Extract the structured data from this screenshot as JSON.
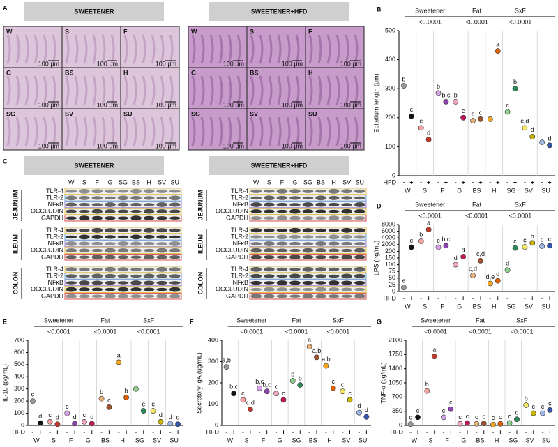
{
  "panel_A": {
    "label": "A",
    "titles": [
      "SWEETENER",
      "SWEETENER+HFD"
    ],
    "image_labels": [
      "W",
      "S",
      "F",
      "G",
      "BS",
      "H",
      "SG",
      "SV",
      "SU"
    ],
    "scale_bar": "100 μm"
  },
  "panel_C": {
    "label": "C",
    "titles": [
      "SWEETENER",
      "SWEETENER+HFD"
    ],
    "lanes": [
      "W",
      "S",
      "F",
      "G",
      "SG",
      "BS",
      "H",
      "SV",
      "SU"
    ],
    "tissues": [
      "JEJUNUM",
      "ILEUM",
      "COLON"
    ],
    "proteins": [
      "TLR-4",
      "TLR-2",
      "NFκB",
      "OCCLUDIN",
      "GAPDH"
    ]
  },
  "chart_data": [
    {
      "type": "dot",
      "panel": "B",
      "ylabel": "Epitelium length (μm)",
      "factors": [
        "Sweetener",
        "Fat",
        "SxF"
      ],
      "pvalues": [
        "<0.0001",
        "<0.0001",
        "<0.0001"
      ],
      "hfd_label": "HFD",
      "hfd_levels": [
        "-",
        "+"
      ],
      "categories": [
        "W",
        "S",
        "F",
        "G",
        "BS",
        "H",
        "SG",
        "SV",
        "SU"
      ],
      "ylim": [
        0,
        500
      ],
      "yticks": [
        0,
        100,
        200,
        300,
        400,
        500
      ],
      "series": [
        {
          "values": [
            310,
            165,
            285,
            255,
            190,
            195,
            220,
            165,
            115
          ],
          "letters": [
            "b",
            "c",
            "b",
            "b",
            "c",
            null,
            "c",
            "c,d",
            null
          ],
          "colors": [
            "#9a9a9a",
            "#f4a3a3",
            "#d6a3e8",
            "#f2a6c6",
            "#e8b07a",
            "#f5a623",
            "#8fd18f",
            "#f5e663",
            "#9fb8e8"
          ]
        },
        {
          "values": [
            205,
            125,
            255,
            200,
            195,
            430,
            300,
            135,
            105
          ],
          "letters": [
            "c",
            "d",
            "b,c",
            "c",
            "c",
            "a",
            "b",
            "d",
            "d"
          ],
          "colors": [
            "#111111",
            "#c0392b",
            "#8e44ad",
            "#c2185b",
            "#a0522d",
            "#e06000",
            "#2e8b57",
            "#c8b400",
            "#3355aa"
          ]
        }
      ]
    },
    {
      "type": "dot",
      "panel": "D",
      "ylabel": "LPS (ng/mL)",
      "factors": [
        "Sweetener",
        "Fat",
        "SxF"
      ],
      "pvalues": [
        "<0.0001",
        "<0.0001",
        "<0.0001"
      ],
      "hfd_label": "HFD",
      "hfd_levels": [
        "-",
        "+"
      ],
      "categories": [
        "W",
        "S",
        "F",
        "G",
        "BS",
        "H",
        "SG",
        "SV",
        "SU"
      ],
      "ylim": [
        0,
        8000
      ],
      "yscale": "segmented",
      "yticks": [
        0,
        25,
        50,
        75,
        100,
        150,
        200,
        2000,
        4000,
        6000,
        8000
      ],
      "series": [
        {
          "values": [
            15,
            3000,
            1300,
            100,
            60,
            30,
            80,
            1400,
            1600
          ],
          "letters": [
            "e",
            "b",
            "c",
            "d",
            "c,d",
            "d,e",
            "d",
            "c",
            "c"
          ],
          "colors": [
            "#9a9a9a",
            "#f4a3a3",
            "#d6a3e8",
            "#f2a6c6",
            "#e8b07a",
            "#f5a623",
            "#8fd18f",
            "#f5e663",
            "#9fb8e8"
          ]
        },
        {
          "values": [
            1300,
            6500,
            1700,
            160,
            130,
            40,
            1100,
            2500,
            1700
          ],
          "letters": [
            "c",
            "a",
            "b,c",
            "d",
            "c,d",
            "d",
            "c",
            "b",
            "c"
          ],
          "colors": [
            "#111111",
            "#c0392b",
            "#8e44ad",
            "#c2185b",
            "#a0522d",
            "#e06000",
            "#2e8b57",
            "#c8b400",
            "#3355aa"
          ]
        }
      ]
    },
    {
      "type": "dot",
      "panel": "E",
      "ylabel": "IL-10 (pg/mL)",
      "factors": [
        "Sweetener",
        "Fat",
        "SxF"
      ],
      "pvalues": [
        "<0.0001",
        "<0.0001",
        "<0.0001"
      ],
      "hfd_label": "HFD",
      "hfd_levels": [
        "-",
        "+"
      ],
      "categories": [
        "W",
        "S",
        "F",
        "G",
        "BS",
        "H",
        "SG",
        "SV",
        "SU"
      ],
      "ylim": [
        0,
        700
      ],
      "yticks": [
        0,
        100,
        200,
        300,
        400,
        500,
        600,
        700
      ],
      "series": [
        {
          "values": [
            200,
            30,
            100,
            30,
            220,
            520,
            300,
            120,
            15
          ],
          "letters": [
            "c",
            "c",
            "c",
            "c",
            "b",
            "a",
            "b",
            "c",
            "d"
          ],
          "colors": [
            "#9a9a9a",
            "#f4a3a3",
            "#d6a3e8",
            "#f2a6c6",
            "#e8b07a",
            "#f5a623",
            "#8fd18f",
            "#f5e663",
            "#9fb8e8"
          ]
        },
        {
          "values": [
            20,
            10,
            15,
            15,
            150,
            230,
            120,
            30,
            10
          ],
          "letters": [
            "d",
            "d",
            "d",
            "d",
            "c",
            "b",
            "c",
            "d",
            "d"
          ],
          "colors": [
            "#111111",
            "#c0392b",
            "#8e44ad",
            "#c2185b",
            "#a0522d",
            "#e06000",
            "#2e8b57",
            "#c8b400",
            "#3355aa"
          ]
        }
      ]
    },
    {
      "type": "dot",
      "panel": "F",
      "ylabel": "Secretory IgA (ug/mL)",
      "factors": [
        "Sweetener",
        "Fat",
        "SxF"
      ],
      "pvalues": [
        "<0.0001",
        "<0.0001",
        "<0.0001"
      ],
      "hfd_label": "HFD",
      "hfd_levels": [
        "-",
        "+"
      ],
      "categories": [
        "W",
        "S",
        "F",
        "G",
        "SG",
        "BS",
        "H",
        "SV",
        "SU"
      ],
      "ylim": [
        0,
        400
      ],
      "yticks": [
        0,
        100,
        200,
        300,
        400
      ],
      "series": [
        {
          "values": [
            275,
            120,
            175,
            150,
            210,
            370,
            280,
            160,
            60
          ],
          "letters": [
            "a,b",
            "c",
            "b,c",
            "c",
            "b",
            "a",
            "a,b",
            "c",
            "d"
          ],
          "colors": [
            "#9a9a9a",
            "#f4a3a3",
            "#d6a3e8",
            "#f2a6c6",
            "#8fd18f",
            "#e8b07a",
            "#f5a623",
            "#f5e663",
            "#9fb8e8"
          ]
        },
        {
          "values": [
            150,
            75,
            160,
            120,
            190,
            320,
            175,
            120,
            40
          ],
          "letters": [
            "b,c",
            "c,d",
            "b,c",
            "c",
            "b",
            "a,b",
            "c",
            "c",
            "d"
          ],
          "colors": [
            "#111111",
            "#c0392b",
            "#8e44ad",
            "#c2185b",
            "#2e8b57",
            "#a0522d",
            "#e06000",
            "#c8b400",
            "#3355aa"
          ]
        }
      ]
    },
    {
      "type": "dot",
      "panel": "G",
      "ylabel": "TNF-α (pg/mL)",
      "factors": [
        "Sweetener",
        "Fat",
        "SxF"
      ],
      "pvalues": [
        "<0.0001",
        "<0.0001",
        "<0.0001"
      ],
      "hfd_label": "HFD",
      "hfd_levels": [
        "-",
        "+"
      ],
      "categories": [
        "W",
        "S",
        "F",
        "G",
        "BS",
        "H",
        "SG",
        "SV",
        "SU"
      ],
      "ylim": [
        0,
        2100
      ],
      "yticks": [
        0,
        350,
        700,
        1050,
        1400,
        1750,
        2100
      ],
      "series": [
        {
          "values": [
            30,
            850,
            200,
            40,
            40,
            20,
            60,
            500,
            300
          ],
          "letters": [
            "c",
            "b",
            "c",
            "c",
            "c",
            "c",
            "c",
            "b",
            "c"
          ],
          "colors": [
            "#9a9a9a",
            "#f4a3a3",
            "#d6a3e8",
            "#f2a6c6",
            "#e8b07a",
            "#f5a623",
            "#8fd18f",
            "#f5e663",
            "#9fb8e8"
          ]
        },
        {
          "values": [
            200,
            1700,
            400,
            60,
            50,
            40,
            150,
            300,
            380
          ],
          "letters": [
            "c",
            "a",
            "c",
            "c",
            "c",
            "c",
            "c",
            "c",
            "c"
          ],
          "colors": [
            "#111111",
            "#c0392b",
            "#8e44ad",
            "#c2185b",
            "#a0522d",
            "#e06000",
            "#2e8b57",
            "#c8b400",
            "#3355aa"
          ]
        }
      ]
    }
  ]
}
